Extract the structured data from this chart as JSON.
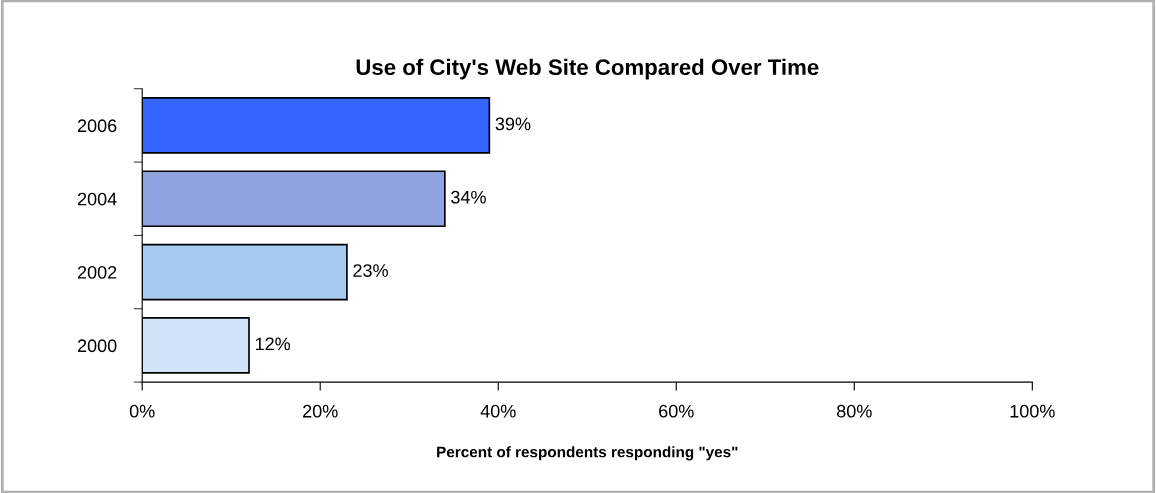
{
  "chart_data": {
    "type": "bar",
    "orientation": "horizontal",
    "title": "Use of City's Web Site Compared Over Time",
    "xlabel": "Percent of respondents responding \"yes\"",
    "categories": [
      "2006",
      "2004",
      "2002",
      "2000"
    ],
    "values": [
      39,
      34,
      23,
      12
    ],
    "colors": [
      "#3366ff",
      "#8fa3e0",
      "#a6caf0",
      "#d2e4f8"
    ],
    "value_labels": [
      "39%",
      "34%",
      "23%",
      "12%"
    ],
    "xlim": [
      0,
      100
    ],
    "xticks": [
      {
        "value": 0,
        "label": "0%"
      },
      {
        "value": 20,
        "label": "20%"
      },
      {
        "value": 40,
        "label": "40%"
      },
      {
        "value": 60,
        "label": "60%"
      },
      {
        "value": 80,
        "label": "80%"
      },
      {
        "value": 100,
        "label": "100%"
      }
    ],
    "grid": false,
    "legend": false
  }
}
